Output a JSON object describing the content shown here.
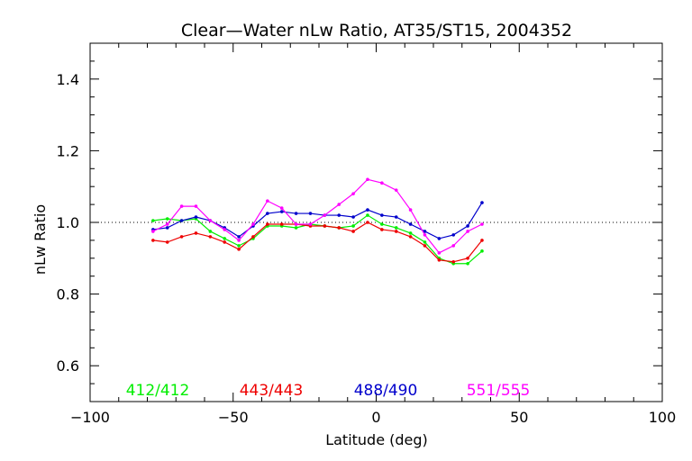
{
  "chart_data": {
    "type": "line",
    "title": "Clear—Water nLw Ratio, AT35/ST15, 2004352",
    "xlabel": "Latitude (deg)",
    "ylabel": "nLw Ratio",
    "xlim": [
      -100,
      100
    ],
    "ylim": [
      0.5,
      1.5
    ],
    "xticks": [
      -100,
      -50,
      0,
      50,
      100
    ],
    "xtick_labels": [
      "−100",
      "−50",
      "0",
      "50",
      "100"
    ],
    "yticks": [
      0.6,
      0.8,
      1.0,
      1.2,
      1.4
    ],
    "ytick_labels": [
      "0.6",
      "0.8",
      "1.0",
      "1.2",
      "1.4"
    ],
    "reference_line": {
      "y": 1.0,
      "style": "dotted"
    },
    "grid": false,
    "legend_placement": "bottom-inside",
    "x": [
      -78,
      -73,
      -68,
      -63,
      -58,
      -53,
      -48,
      -43,
      -38,
      -33,
      -28,
      -23,
      -18,
      -13,
      -8,
      -3,
      2,
      7,
      12,
      17,
      22,
      27,
      32,
      37
    ],
    "series": [
      {
        "name": "412/412",
        "color": "#00ee00",
        "values": [
          1.005,
          1.01,
          1.005,
          1.01,
          0.975,
          0.955,
          0.935,
          0.955,
          0.99,
          0.99,
          0.985,
          0.995,
          0.99,
          0.985,
          0.99,
          1.02,
          0.995,
          0.985,
          0.97,
          0.945,
          0.9,
          0.885,
          0.885,
          0.92
        ]
      },
      {
        "name": "443/443",
        "color": "#ee0000",
        "values": [
          0.95,
          0.945,
          0.96,
          0.97,
          0.96,
          0.945,
          0.925,
          0.96,
          0.995,
          0.995,
          0.995,
          0.99,
          0.99,
          0.985,
          0.975,
          1.0,
          0.98,
          0.975,
          0.96,
          0.935,
          0.895,
          0.89,
          0.9,
          0.95
        ]
      },
      {
        "name": "488/490",
        "color": "#0000cc",
        "values": [
          0.98,
          0.985,
          1.005,
          1.015,
          1.005,
          0.985,
          0.96,
          0.99,
          1.025,
          1.03,
          1.025,
          1.025,
          1.02,
          1.02,
          1.015,
          1.035,
          1.02,
          1.015,
          0.995,
          0.975,
          0.955,
          0.965,
          0.99,
          1.055
        ]
      },
      {
        "name": "551/555",
        "color": "#ff00ff",
        "values": [
          0.975,
          0.995,
          1.045,
          1.045,
          1.005,
          0.98,
          0.95,
          0.995,
          1.06,
          1.04,
          0.995,
          0.995,
          1.02,
          1.05,
          1.08,
          1.12,
          1.11,
          1.09,
          1.035,
          0.965,
          0.915,
          0.935,
          0.975,
          0.995
        ]
      }
    ]
  }
}
